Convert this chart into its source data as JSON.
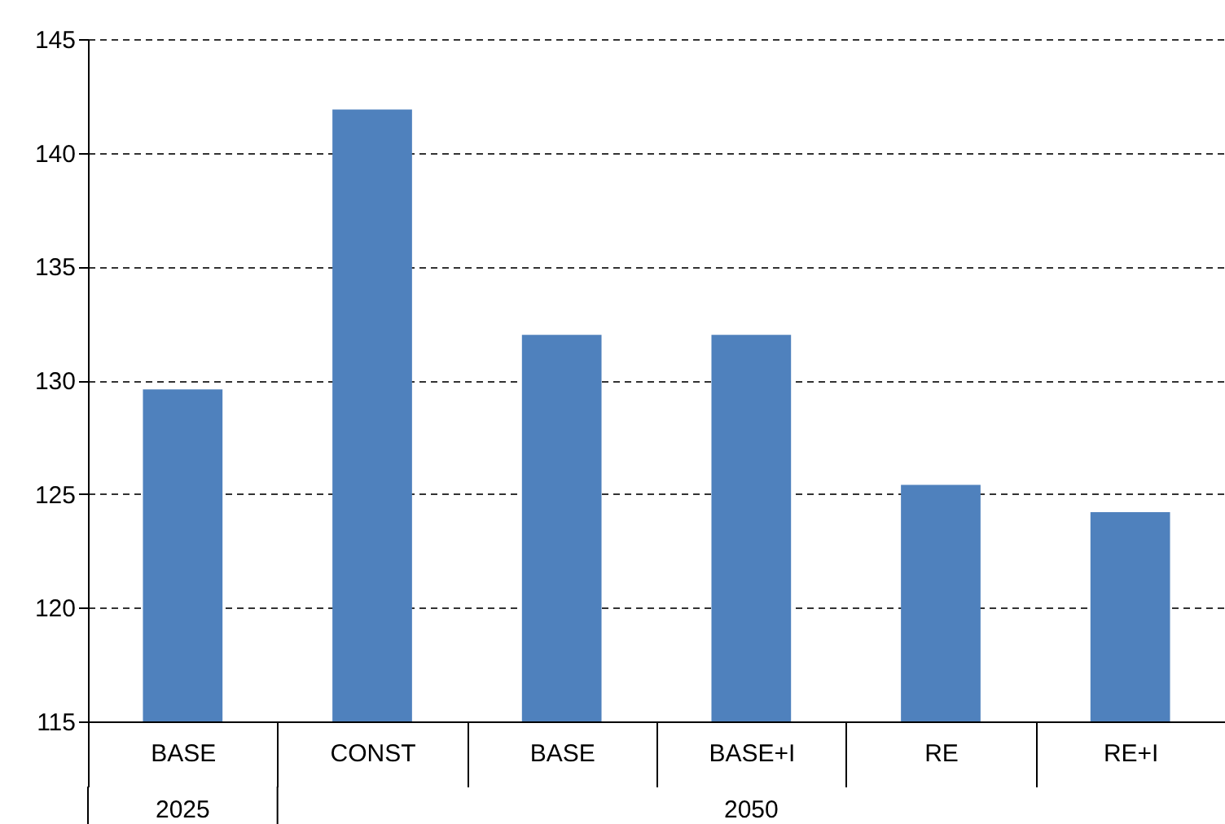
{
  "chart_data": {
    "type": "bar",
    "categories": [
      "BASE",
      "CONST",
      "BASE",
      "BASE+I",
      "RE",
      "RE+I"
    ],
    "values": [
      129.6,
      141.9,
      132.0,
      132.0,
      125.4,
      124.2
    ],
    "color": "#4f81bd",
    "ylim": [
      115,
      145
    ],
    "yticks": [
      115,
      120,
      125,
      130,
      135,
      140,
      145
    ],
    "grid": "y",
    "annotations": [
      "2025",
      "2050"
    ]
  }
}
